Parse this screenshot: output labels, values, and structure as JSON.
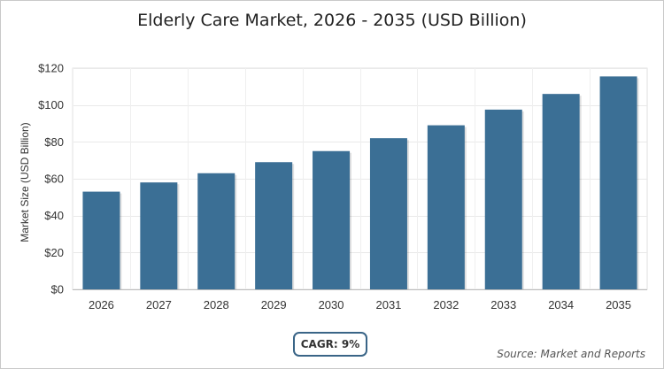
{
  "chart_data": {
    "type": "bar",
    "title": "Elderly Care Market, 2026 - 2035 (USD Billion)",
    "xlabel": "",
    "ylabel": "Market Size (USD Billion)",
    "categories": [
      "2026",
      "2027",
      "2028",
      "2029",
      "2030",
      "2031",
      "2032",
      "2033",
      "2034",
      "2035"
    ],
    "values": [
      53,
      58,
      63,
      69,
      75,
      82,
      89,
      97.5,
      106,
      115.5
    ],
    "ylim": [
      0,
      120
    ],
    "yticks": [
      0,
      20,
      40,
      60,
      80,
      100,
      120
    ],
    "ytick_prefix": "$",
    "grid": true,
    "bar_color": "#3b6f95",
    "annotation": "CAGR: 9%",
    "source": "Source: Market and Reports"
  }
}
